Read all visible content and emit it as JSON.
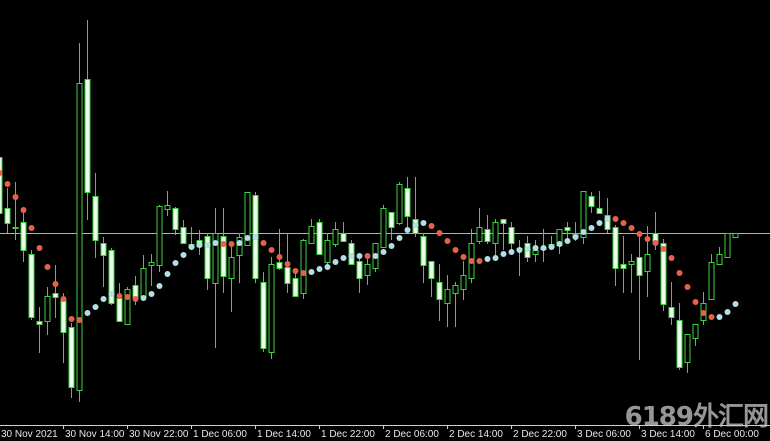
{
  "chart_data": {
    "type": "candlestick",
    "timeframe_step_hours": 1,
    "colors": {
      "background": "#000000",
      "candle_outline": "#3fd23f",
      "bear_fill": "#eaffea",
      "bull_fill": "#000000",
      "sar_above": "#e8604a",
      "sar_below": "#b5dde8",
      "hline": "#b0b0b0",
      "axis_text": "#e8e8e8"
    },
    "hline_value": 208,
    "x_tick_labels": [
      "30 Nov 2021",
      "30 Nov 14:00",
      "30 Nov 22:00",
      "1 Dec 06:00",
      "1 Dec 14:00",
      "1 Dec 22:00",
      "2 Dec 06:00",
      "2 Dec 14:00",
      "2 Dec 22:00",
      "3 Dec 06:00",
      "3 Dec 14:00",
      "6 Dec 00:00"
    ],
    "x_tick_every_bars": 8,
    "ohlc": [
      [
        284,
        286,
        209,
        228
      ],
      [
        233,
        253,
        208,
        218
      ],
      [
        214,
        259,
        201,
        214
      ],
      [
        219,
        228,
        179,
        191
      ],
      [
        187,
        191,
        121,
        124
      ],
      [
        120,
        134,
        88,
        117
      ],
      [
        120,
        154,
        106,
        145
      ],
      [
        148,
        176,
        123,
        144
      ],
      [
        141,
        148,
        78,
        109
      ],
      [
        114,
        118,
        43,
        54
      ],
      [
        51,
        398,
        39,
        358
      ],
      [
        362,
        421,
        221,
        249
      ],
      [
        245,
        268,
        183,
        201
      ],
      [
        198,
        204,
        154,
        186
      ],
      [
        191,
        193,
        136,
        138
      ],
      [
        143,
        158,
        119,
        120
      ],
      [
        117,
        154,
        116,
        152
      ],
      [
        156,
        165,
        136,
        144
      ],
      [
        145,
        186,
        143,
        173
      ],
      [
        176,
        187,
        155,
        179
      ],
      [
        176,
        236,
        169,
        235
      ],
      [
        232,
        250,
        225,
        236
      ],
      [
        233,
        234,
        206,
        212
      ],
      [
        214,
        221,
        198,
        198
      ],
      [
        194,
        214,
        193,
        197
      ],
      [
        201,
        211,
        186,
        195
      ],
      [
        205,
        208,
        151,
        163
      ],
      [
        158,
        233,
        93,
        208
      ],
      [
        205,
        233,
        148,
        165
      ],
      [
        163,
        194,
        129,
        184
      ],
      [
        186,
        208,
        158,
        204
      ],
      [
        196,
        249,
        196,
        249
      ],
      [
        246,
        249,
        158,
        163
      ],
      [
        159,
        169,
        89,
        93
      ],
      [
        89,
        184,
        82,
        177
      ],
      [
        179,
        212,
        171,
        173
      ],
      [
        174,
        208,
        148,
        158
      ],
      [
        163,
        169,
        144,
        145
      ],
      [
        148,
        202,
        142,
        201
      ],
      [
        198,
        222,
        197,
        215
      ],
      [
        219,
        222,
        186,
        187
      ],
      [
        179,
        208,
        176,
        201
      ],
      [
        197,
        219,
        194,
        212
      ],
      [
        208,
        219,
        199,
        200
      ],
      [
        198,
        201,
        176,
        177
      ],
      [
        180,
        185,
        148,
        163
      ],
      [
        166,
        185,
        156,
        177
      ],
      [
        173,
        198,
        169,
        198
      ],
      [
        194,
        236,
        193,
        233
      ],
      [
        229,
        229,
        201,
        214
      ],
      [
        218,
        259,
        216,
        257
      ],
      [
        253,
        264,
        214,
        225
      ],
      [
        222,
        264,
        204,
        208
      ],
      [
        205,
        208,
        158,
        176
      ],
      [
        180,
        180,
        144,
        163
      ],
      [
        159,
        177,
        120,
        142
      ],
      [
        138,
        166,
        114,
        152
      ],
      [
        148,
        159,
        114,
        156
      ],
      [
        152,
        180,
        141,
        166
      ],
      [
        163,
        212,
        158,
        198
      ],
      [
        200,
        233,
        197,
        214
      ],
      [
        212,
        226,
        197,
        200
      ],
      [
        198,
        222,
        186,
        219
      ],
      [
        222,
        222,
        191,
        218
      ],
      [
        214,
        219,
        191,
        198
      ],
      [
        191,
        201,
        165,
        193
      ],
      [
        198,
        205,
        179,
        184
      ],
      [
        187,
        201,
        179,
        191
      ],
      [
        192,
        212,
        179,
        194
      ],
      [
        194,
        205,
        192,
        197
      ],
      [
        196,
        212,
        187,
        212
      ],
      [
        214,
        219,
        202,
        211
      ],
      [
        204,
        219,
        200,
        208
      ],
      [
        204,
        250,
        197,
        250
      ],
      [
        245,
        249,
        228,
        235
      ],
      [
        233,
        250,
        228,
        228
      ],
      [
        226,
        243,
        208,
        212
      ],
      [
        214,
        216,
        155,
        173
      ],
      [
        177,
        205,
        148,
        173
      ],
      [
        177,
        187,
        148,
        180
      ],
      [
        184,
        204,
        81,
        166
      ],
      [
        170,
        215,
        144,
        187
      ],
      [
        208,
        229,
        191,
        198
      ],
      [
        198,
        202,
        130,
        137
      ],
      [
        134,
        159,
        116,
        124
      ],
      [
        121,
        138,
        71,
        74
      ],
      [
        79,
        107,
        68,
        107
      ],
      [
        103,
        117,
        95,
        117
      ],
      [
        121,
        149,
        116,
        138
      ],
      [
        142,
        187,
        141,
        179
      ],
      [
        177,
        194,
        176,
        187
      ],
      [
        184,
        208,
        184,
        208
      ],
      [
        204,
        208,
        204,
        208
      ]
    ],
    "sar": [
      268,
      257,
      244,
      231,
      213,
      193,
      174,
      157,
      142,
      122,
      121,
      128,
      134,
      142,
      147,
      145,
      144,
      142,
      143,
      147,
      155,
      167,
      178,
      186,
      194,
      196,
      196,
      198,
      197,
      197,
      198,
      203,
      204,
      198,
      191,
      184,
      177,
      170,
      168,
      169,
      172,
      174,
      179,
      183,
      185,
      185,
      185,
      185,
      189,
      195,
      203,
      211,
      216,
      218,
      215,
      208,
      200,
      191,
      184,
      180,
      180,
      182,
      183,
      187,
      189,
      191,
      192,
      193,
      193,
      194,
      197,
      200,
      204,
      209,
      213,
      218,
      222,
      222,
      218,
      213,
      207,
      202,
      198,
      192,
      183,
      168,
      154,
      139,
      128,
      124,
      124,
      129,
      137
    ],
    "sar_above": [
      0,
      1,
      2,
      3,
      4,
      5,
      6,
      7,
      8,
      9,
      10,
      15,
      16,
      17,
      28,
      29,
      33,
      34,
      35,
      36,
      37,
      38,
      46,
      54,
      55,
      56,
      57,
      58,
      59,
      60,
      77,
      78,
      79,
      80,
      81,
      82,
      83,
      84,
      85,
      86,
      87,
      88,
      89
    ]
  },
  "watermark": "6189外汇网"
}
